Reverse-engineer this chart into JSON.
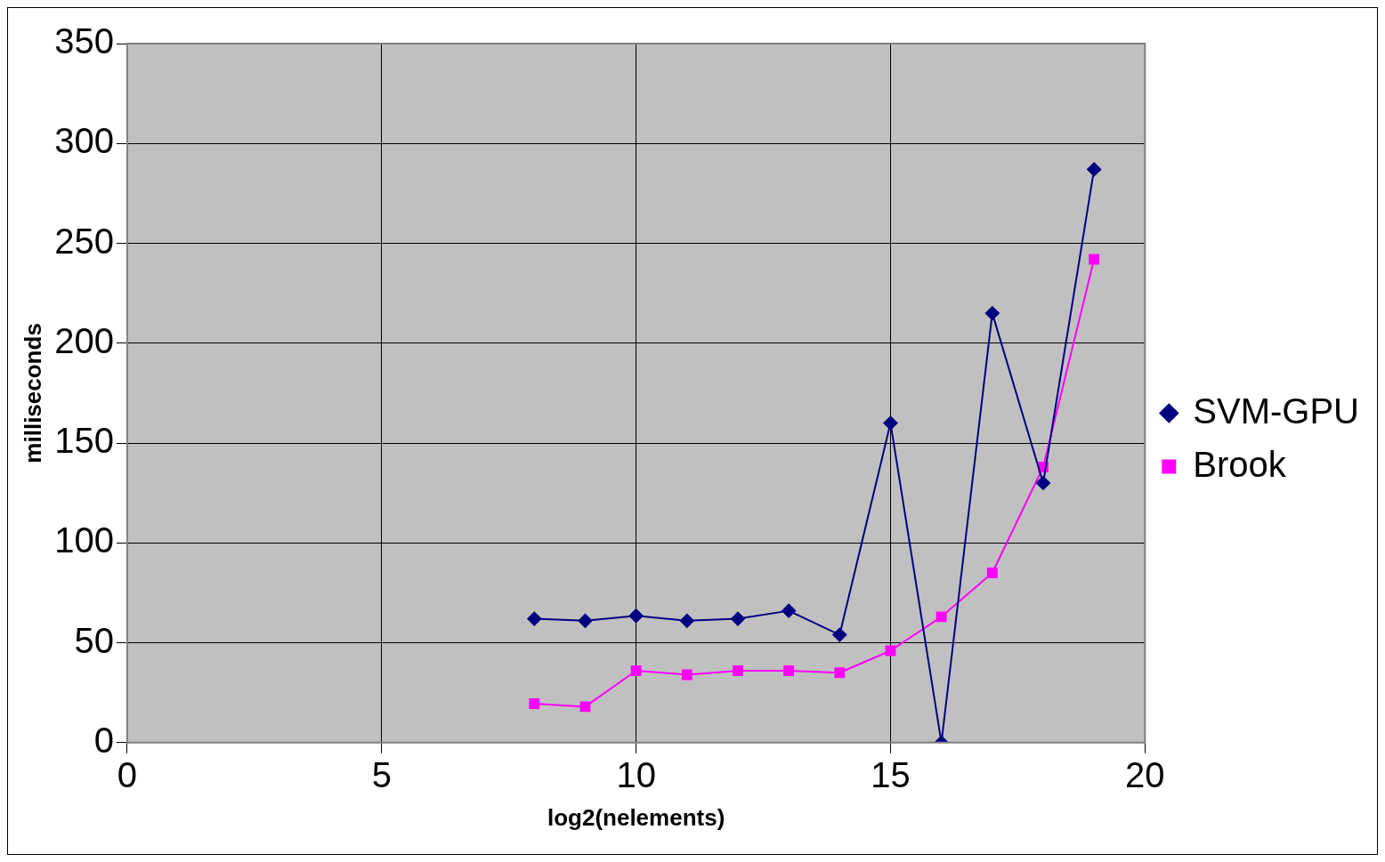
{
  "chart_data": {
    "type": "line",
    "xlabel": "log2(nelements)",
    "ylabel": "milliseconds",
    "x": [
      8,
      9,
      10,
      11,
      12,
      13,
      14,
      15,
      16,
      17,
      18,
      19
    ],
    "series": [
      {
        "name": "SVM-GPU",
        "color": "#000080",
        "marker": "diamond",
        "values": [
          62,
          61,
          63.5,
          61,
          62,
          66,
          54,
          160,
          0,
          215,
          130,
          287
        ]
      },
      {
        "name": "Brook",
        "color": "#ff00ff",
        "marker": "square",
        "values": [
          19.5,
          18,
          36,
          34,
          36,
          36,
          35,
          46,
          63,
          85,
          138,
          242
        ]
      }
    ],
    "xlim": [
      0,
      20
    ],
    "xticks": [
      0,
      5,
      10,
      15,
      20
    ],
    "ylim": [
      0,
      350
    ],
    "yticks": [
      0,
      50,
      100,
      150,
      200,
      250,
      300,
      350
    ],
    "grid": true,
    "legend": "right",
    "line_style": "solid"
  }
}
